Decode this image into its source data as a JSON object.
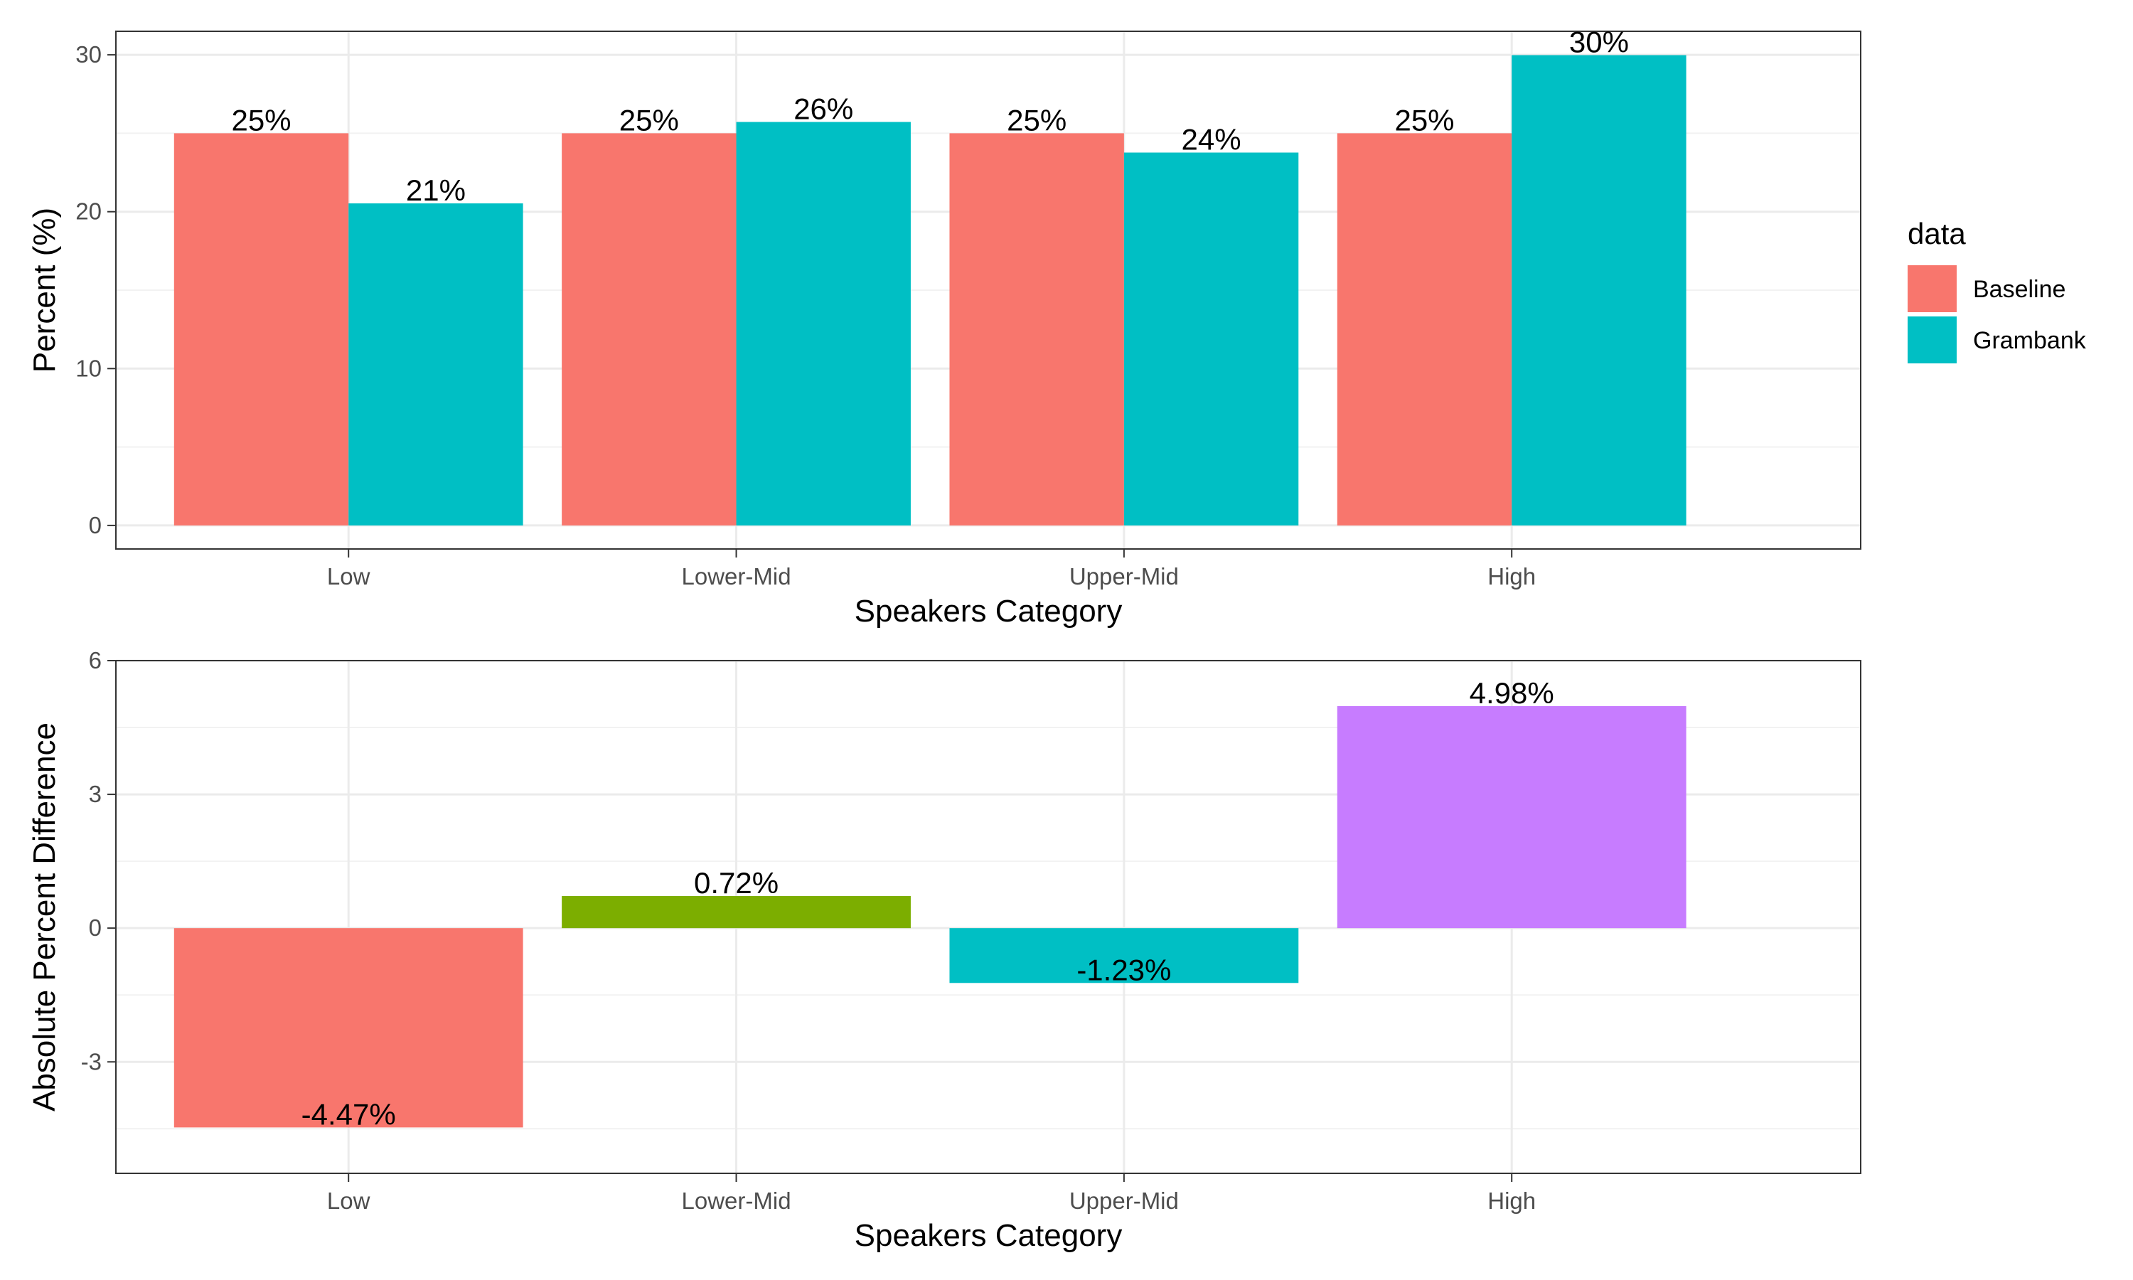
{
  "chart_data": [
    {
      "type": "bar",
      "categories": [
        "Low",
        "Lower-Mid",
        "Upper-Mid",
        "High"
      ],
      "series": [
        {
          "name": "Baseline",
          "color": "#F8766D",
          "values": [
            25,
            25,
            25,
            25
          ],
          "labels": [
            "25%",
            "25%",
            "25%",
            "25%"
          ]
        },
        {
          "name": "Grambank",
          "color": "#00BFC4",
          "values": [
            20.53,
            25.72,
            23.77,
            29.98
          ],
          "labels": [
            "21%",
            "26%",
            "24%",
            "30%"
          ]
        }
      ],
      "ylim": [
        -1.5,
        31.5
      ],
      "yticks": [
        0,
        10,
        20,
        30
      ],
      "ytick_labels": [
        "0",
        "10",
        "20",
        "30"
      ],
      "xlabel": "Speakers Category",
      "ylabel": "Percent (%)",
      "legend": {
        "title": "data",
        "position": "right",
        "entries": [
          "Baseline",
          "Grambank"
        ]
      },
      "grid": true
    },
    {
      "type": "bar",
      "categories": [
        "Low",
        "Lower-Mid",
        "Upper-Mid",
        "High"
      ],
      "values": [
        -4.47,
        0.72,
        -1.23,
        4.98
      ],
      "labels": [
        "-4.47%",
        "0.72%",
        "-1.23%",
        "4.98%"
      ],
      "colors": [
        "#F8766D",
        "#7CAE00",
        "#00BFC4",
        "#C77CFF"
      ],
      "ylim": [
        -5.5,
        6
      ],
      "yticks": [
        -3,
        0,
        3,
        6
      ],
      "ytick_labels": [
        "-3",
        "0",
        "3",
        "6"
      ],
      "xlabel": "Speakers Category",
      "ylabel": "Absolute Percent Difference",
      "grid": true
    }
  ]
}
